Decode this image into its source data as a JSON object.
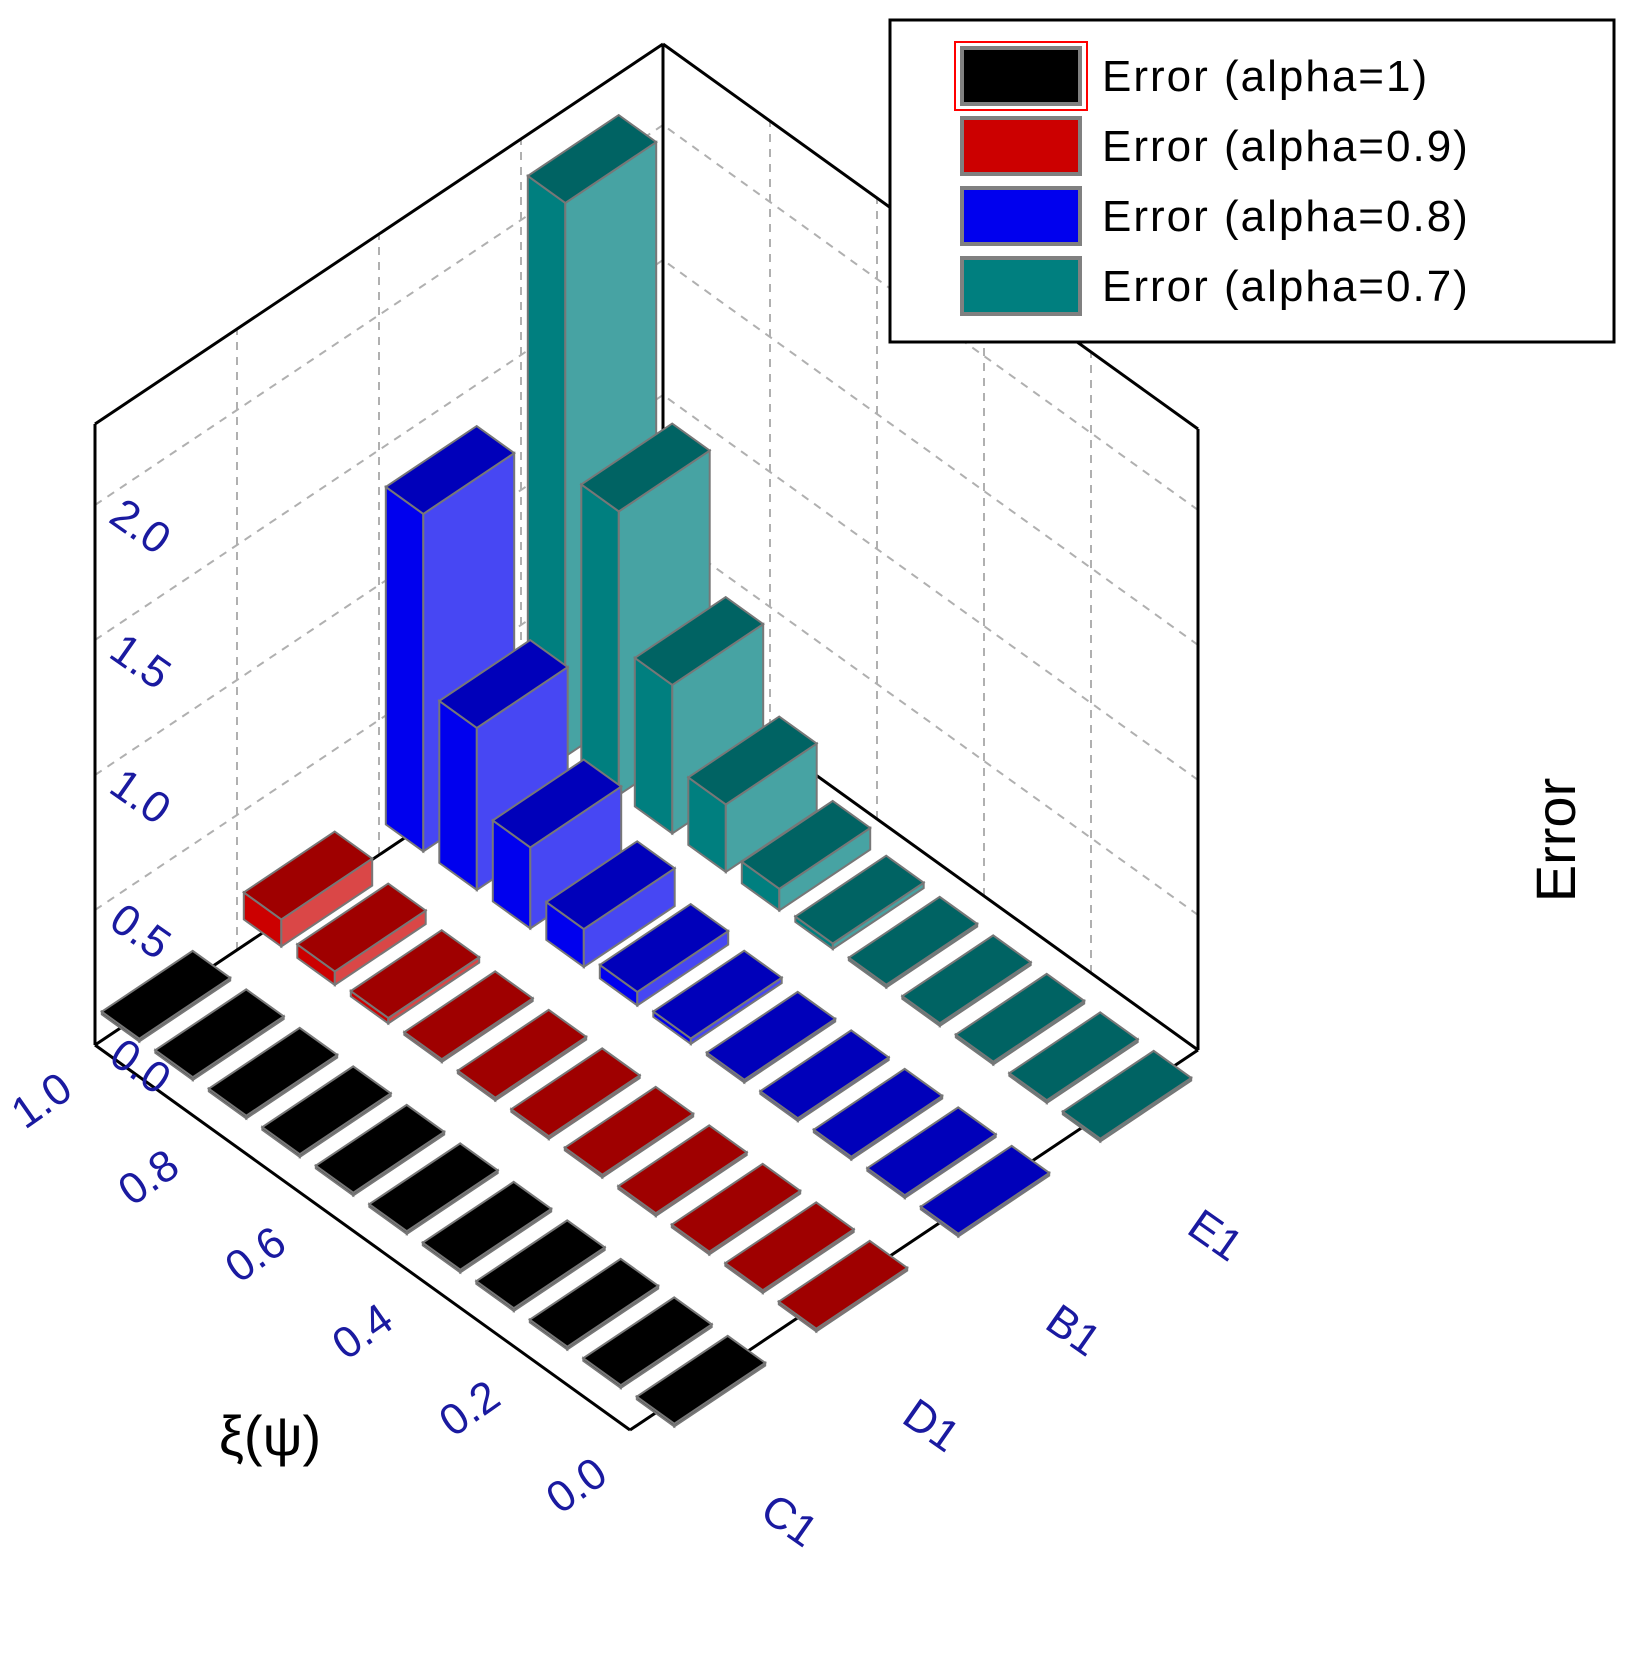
{
  "chart_data": {
    "type": "bar",
    "subtype": "3d-bar",
    "title": "",
    "xlabel": "ξ(ψ)",
    "ylabel": "",
    "zlabel": "Error",
    "x": [
      0.0,
      0.1,
      0.2,
      0.3,
      0.4,
      0.5,
      0.6,
      0.7,
      0.8,
      0.9,
      1.0
    ],
    "x_ticks": [
      "0.0",
      "0.2",
      "0.4",
      "0.6",
      "0.8",
      "1.0"
    ],
    "y_categories": [
      "C1",
      "D1",
      "B1",
      "E1"
    ],
    "z_ticks": [
      "0.0",
      "0.5",
      "1.0",
      "1.5",
      "2.0"
    ],
    "zlim": [
      0,
      2.3
    ],
    "grid": true,
    "legend_position": "top-right",
    "series": [
      {
        "name": "Error (alpha=1)",
        "color": "#000000",
        "values": [
          0.01,
          0.01,
          0.01,
          0.01,
          0.01,
          0.01,
          0.01,
          0.01,
          0.01,
          0.01,
          0.01
        ]
      },
      {
        "name": "Error (alpha=0.9)",
        "color": "#cc0000",
        "values": [
          0.01,
          0.01,
          0.01,
          0.01,
          0.01,
          0.01,
          0.01,
          0.01,
          0.02,
          0.05,
          0.1
        ]
      },
      {
        "name": "Error (alpha=0.8)",
        "color": "#0000ee",
        "values": [
          0.01,
          0.01,
          0.01,
          0.01,
          0.01,
          0.02,
          0.05,
          0.14,
          0.3,
          0.6,
          1.25
        ]
      },
      {
        "name": "Error (alpha=0.7)",
        "color": "#007f7f",
        "values": [
          0.01,
          0.01,
          0.01,
          0.01,
          0.01,
          0.02,
          0.08,
          0.25,
          0.55,
          1.05,
          2.05
        ]
      }
    ]
  }
}
